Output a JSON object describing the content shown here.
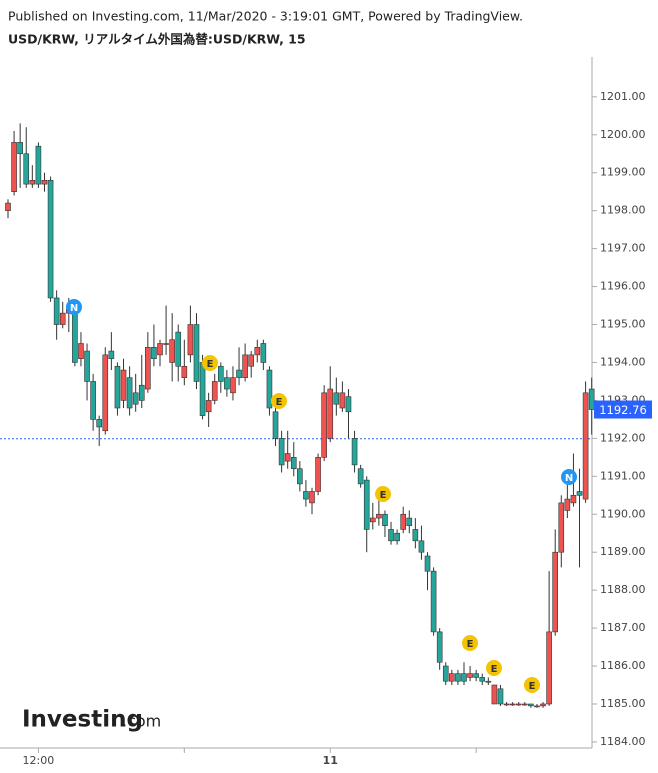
{
  "header": {
    "published": "Published on Investing.com, 11/Mar/2020 - 3:19:01 GMT, Powered by TradingView."
  },
  "logo": {
    "name": "Investing",
    "suffix": ".com"
  },
  "chart_data": {
    "type": "candlestick",
    "title": "USD/KRW, リアルタイム外国為替:USD/KRW, 15",
    "categories": [
      null,
      null,
      null,
      null,
      null,
      "12:00",
      null,
      null,
      null,
      null,
      null,
      null,
      null,
      null,
      null,
      null,
      null,
      null,
      null,
      null,
      null,
      null,
      null,
      null,
      null,
      null,
      null,
      null,
      null,
      null,
      null,
      null,
      null,
      null,
      null,
      null,
      null,
      null,
      null,
      null,
      null,
      null,
      null,
      null,
      null,
      null,
      null,
      null,
      null,
      null,
      null,
      null,
      null,
      "11",
      null,
      null,
      null,
      null,
      null,
      null,
      null,
      null,
      null,
      null,
      null,
      null,
      null,
      null,
      null,
      null,
      null,
      null,
      null,
      null,
      null,
      null,
      null,
      null,
      null,
      null,
      null,
      null,
      null,
      null,
      null,
      null,
      null,
      null,
      null,
      null,
      null,
      null,
      null,
      null,
      null,
      null,
      null
    ],
    "open": [
      1198.0,
      1198.5,
      1199.8,
      1199.5,
      1198.7,
      1199.7,
      1198.7,
      1198.8,
      1195.7,
      1195.0,
      1195.3,
      1195.3,
      1194.1,
      1194.3,
      1193.5,
      1192.5,
      1192.2,
      1194.3,
      1193.9,
      1193.0,
      1193.6,
      1193.2,
      1193.4,
      1193.3,
      1194.4,
      1194.2,
      1194.5,
      1194.0,
      1194.8,
      1193.6,
      1194.2,
      1195.0,
      1194.0,
      1192.7,
      1193.0,
      1193.9,
      1193.6,
      1193.2,
      1193.8,
      1193.6,
      1193.9,
      1194.2,
      1194.5,
      1193.8,
      1192.7,
      1192.0,
      1191.4,
      1191.5,
      1191.2,
      1190.6,
      1190.3,
      1190.6,
      1191.5,
      1192.0,
      1193.2,
      1192.8,
      1193.1,
      1192.0,
      1191.2,
      1190.9,
      1189.8,
      1189.9,
      1190.0,
      1189.6,
      1189.5,
      1189.6,
      1189.9,
      1189.6,
      1189.3,
      1188.9,
      1188.5,
      1186.9,
      1186.0,
      1185.6,
      1185.8,
      1185.8,
      1185.7,
      1185.8,
      1185.7,
      1185.6,
      1185.0,
      1185.4,
      1185.0,
      1185.0,
      1185.0,
      1185.0,
      1185.0,
      1184.95,
      1184.95,
      1185.0,
      1186.9,
      1189.0,
      1190.1,
      1190.3,
      1190.6,
      1190.4,
      1193.3
    ],
    "high": [
      1198.3,
      1200.1,
      1200.3,
      1200.2,
      1199.2,
      1199.8,
      1199.0,
      1198.9,
      1195.9,
      1195.6,
      1195.7,
      1195.5,
      1194.8,
      1194.5,
      1193.7,
      1192.6,
      1194.4,
      1194.8,
      1194.0,
      1194.1,
      1193.9,
      1193.7,
      1194.2,
      1194.8,
      1195.0,
      1194.6,
      1195.5,
      1195.3,
      1195.0,
      1194.6,
      1195.5,
      1195.3,
      1194.2,
      1193.2,
      1193.7,
      1194.0,
      1193.8,
      1193.9,
      1194.4,
      1194.5,
      1194.3,
      1194.6,
      1194.6,
      1193.9,
      1192.9,
      1192.2,
      1192.2,
      1191.9,
      1191.4,
      1190.9,
      1190.7,
      1191.6,
      1193.4,
      1193.9,
      1193.6,
      1193.5,
      1193.3,
      1192.2,
      1191.3,
      1191.0,
      1190.3,
      1190.4,
      1190.1,
      1189.8,
      1189.6,
      1190.2,
      1190.1,
      1189.9,
      1189.7,
      1189.0,
      1188.6,
      1187.0,
      1186.1,
      1185.9,
      1185.9,
      1186.1,
      1186.0,
      1185.9,
      1185.8,
      1185.7,
      1185.5,
      1185.5,
      1185.05,
      1185.05,
      1185.05,
      1185.05,
      1185.0,
      1185.0,
      1185.05,
      1188.5,
      1189.6,
      1190.5,
      1191.0,
      1191.6,
      1191.2,
      1193.5,
      1193.6
    ],
    "low": [
      1197.8,
      1198.4,
      1198.6,
      1198.6,
      1198.6,
      1198.6,
      1198.5,
      1195.6,
      1194.6,
      1194.9,
      1194.8,
      1193.9,
      1193.9,
      1193.0,
      1192.2,
      1191.8,
      1192.1,
      1193.8,
      1192.6,
      1192.8,
      1192.6,
      1192.7,
      1192.8,
      1193.2,
      1193.9,
      1193.9,
      1194.2,
      1193.5,
      1193.5,
      1193.4,
      1194.0,
      1193.3,
      1192.5,
      1192.3,
      1192.9,
      1193.2,
      1193.1,
      1193.0,
      1193.4,
      1193.5,
      1193.6,
      1194.0,
      1193.8,
      1192.6,
      1191.8,
      1191.1,
      1191.2,
      1191.0,
      1190.6,
      1190.2,
      1190.0,
      1190.5,
      1191.4,
      1191.9,
      1192.6,
      1192.7,
      1192.0,
      1191.1,
      1190.7,
      1189.0,
      1189.6,
      1189.7,
      1189.4,
      1189.2,
      1189.2,
      1189.5,
      1189.5,
      1189.1,
      1188.8,
      1188.0,
      1186.8,
      1185.9,
      1185.5,
      1185.5,
      1185.5,
      1185.5,
      1185.6,
      1185.6,
      1185.5,
      1185.5,
      1185.0,
      1184.95,
      1184.95,
      1184.95,
      1184.95,
      1184.95,
      1184.9,
      1184.9,
      1184.9,
      1184.95,
      1186.8,
      1188.6,
      1189.9,
      1190.2,
      1188.6,
      1190.3,
      1192.1
    ],
    "close": [
      1198.2,
      1199.8,
      1199.5,
      1198.7,
      1198.8,
      1198.7,
      1198.8,
      1195.7,
      1195.0,
      1195.3,
      1195.4,
      1194.0,
      1194.5,
      1193.5,
      1192.5,
      1192.3,
      1194.2,
      1194.1,
      1192.8,
      1193.8,
      1192.8,
      1192.9,
      1193.0,
      1194.4,
      1194.1,
      1194.5,
      1194.5,
      1194.6,
      1193.9,
      1193.9,
      1195.0,
      1193.5,
      1192.6,
      1193.0,
      1193.5,
      1193.5,
      1193.3,
      1193.6,
      1193.6,
      1194.2,
      1194.2,
      1194.4,
      1194.0,
      1192.8,
      1192.0,
      1191.3,
      1191.6,
      1191.2,
      1190.8,
      1190.4,
      1190.6,
      1191.5,
      1193.2,
      1193.3,
      1192.9,
      1193.2,
      1192.7,
      1191.3,
      1190.8,
      1189.6,
      1189.9,
      1190.0,
      1189.7,
      1189.3,
      1189.3,
      1190.0,
      1189.7,
      1189.3,
      1189.0,
      1188.5,
      1186.9,
      1186.1,
      1185.6,
      1185.8,
      1185.6,
      1185.6,
      1185.8,
      1185.7,
      1185.6,
      1185.6,
      1185.5,
      1185.0,
      1185.0,
      1185.0,
      1185.0,
      1185.0,
      1184.95,
      1184.95,
      1185.0,
      1186.9,
      1189.0,
      1190.3,
      1190.4,
      1190.5,
      1190.5,
      1193.2,
      1192.76
    ],
    "up_color": "#ef5350",
    "down_color": "#26a69a",
    "price_tag_color": "#2962ff",
    "reference_line": 1191.99,
    "events": [
      {
        "label": "N"
      },
      {
        "label": "E"
      },
      {
        "label": "E"
      },
      {
        "label": "E"
      },
      {
        "label": "E"
      },
      {
        "label": "E"
      },
      {
        "label": "E"
      },
      {
        "label": "N"
      }
    ],
    "ylim": [
      1183.84,
      1202.05
    ],
    "yticks": [
      {
        "value": 1184,
        "label": "1184.00"
      },
      {
        "value": 1185,
        "label": "1185.00"
      },
      {
        "value": 1186,
        "label": "1186.00"
      },
      {
        "value": 1187,
        "label": "1187.00"
      },
      {
        "value": 1188,
        "label": "1188.00"
      },
      {
        "value": 1189,
        "label": "1189.00"
      },
      {
        "value": 1190,
        "label": "1190.00"
      },
      {
        "value": 1191,
        "label": "1191.00"
      },
      {
        "value": 1192,
        "label": "1192.00"
      },
      {
        "value": 1193,
        "label": "1193.00"
      },
      {
        "value": 1194,
        "label": "1194.00"
      },
      {
        "value": 1195,
        "label": "1195.00"
      },
      {
        "value": 1196,
        "label": "1196.00"
      },
      {
        "value": 1197,
        "label": "1197.00"
      },
      {
        "value": 1198,
        "label": "1198.00"
      },
      {
        "value": 1199,
        "label": "1199.00"
      },
      {
        "value": 1200,
        "label": "1200.00"
      },
      {
        "value": 1201,
        "label": "1201.00"
      }
    ]
  }
}
